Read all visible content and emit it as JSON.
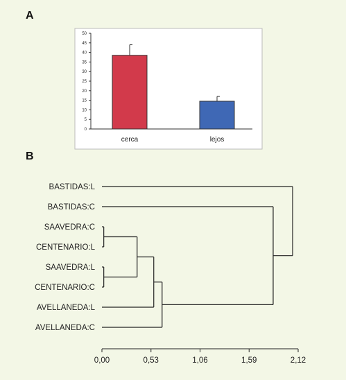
{
  "panels": [
    {
      "label": "A"
    },
    {
      "label": "B"
    }
  ],
  "chart_data": [
    {
      "type": "bar",
      "categories": [
        "cerca",
        "lejos"
      ],
      "values": [
        38.5,
        14.5
      ],
      "errors": [
        5.5,
        2.5
      ],
      "colors": [
        "#d23a4b",
        "#3f68b5"
      ],
      "ylim": [
        0,
        50
      ],
      "yticks": [
        "0",
        "5",
        "10",
        "15",
        "20",
        "25",
        "30",
        "35",
        "40",
        "45",
        "50"
      ],
      "title": "",
      "xlabel": "",
      "ylabel": "",
      "grid": false
    },
    {
      "type": "dendrogram",
      "leaves": [
        "BASTIDAS:L",
        "BASTIDAS:C",
        "SAAVEDRA:C",
        "CENTENARIO:L",
        "SAAVEDRA:L",
        "CENTENARIO:C",
        "AVELLANEDA:L",
        "AVELLANEDA:C"
      ],
      "merges": [
        {
          "a": "leaf:2",
          "b": "leaf:3",
          "height": 0.02
        },
        {
          "a": "leaf:4",
          "b": "leaf:5",
          "height": 0.02
        },
        {
          "a": "node:0",
          "b": "node:1",
          "height": 0.38
        },
        {
          "a": "node:2",
          "b": "leaf:6",
          "height": 0.56
        },
        {
          "a": "node:3",
          "b": "leaf:7",
          "height": 0.65
        },
        {
          "a": "leaf:1",
          "b": "node:4",
          "height": 1.85
        },
        {
          "a": "leaf:0",
          "b": "node:5",
          "height": 2.06
        }
      ],
      "xlim": [
        0,
        2.12
      ],
      "xticks": [
        "0,00",
        "0,53",
        "1,06",
        "1,59",
        "2,12"
      ],
      "xtick_values": [
        0,
        0.53,
        1.06,
        1.59,
        2.12
      ]
    }
  ]
}
